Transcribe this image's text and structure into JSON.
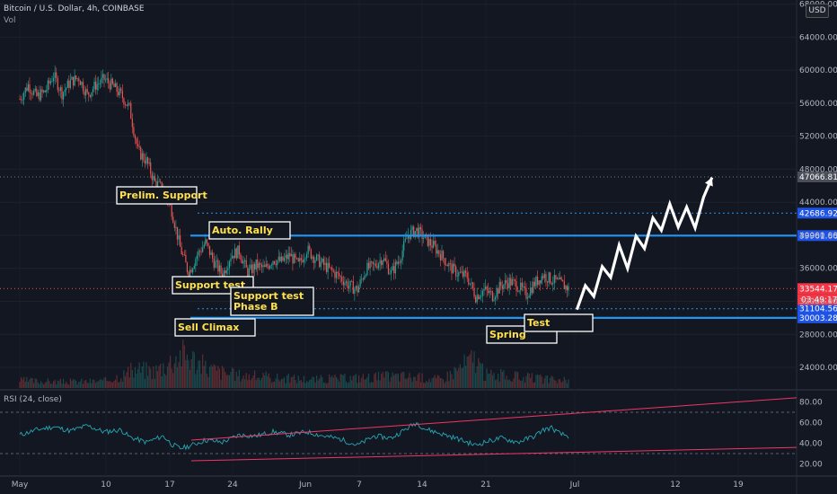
{
  "header": {
    "title": "Bitcoin / U.S. Dollar, 4h, COINBASE",
    "volume_label": "Vol",
    "rsi_label": "RSI (24, close)",
    "currency": "USD"
  },
  "chart_data": {
    "type": "candlestick",
    "symbol": "Bitcoin / U.S. Dollar",
    "interval": "4h",
    "exchange": "COINBASE",
    "currency": "USD",
    "price_axis": {
      "ticks": [
        24000,
        28000,
        32000,
        36000,
        40000,
        44000,
        48000,
        52000,
        56000,
        60000,
        64000,
        68000
      ],
      "tick_labels": [
        "24000.00",
        "28000.00",
        "32000.00",
        "36000.00",
        "40000.00",
        "44000.00",
        "48000.00",
        "52000.00",
        "56000.00",
        "60000.00",
        "64000.00",
        "68000.00"
      ],
      "range": [
        21500,
        68500
      ]
    },
    "x_axis": {
      "ticks": [
        "May",
        "10",
        "17",
        "24",
        "Jun",
        "7",
        "14",
        "21",
        "Jul",
        "12",
        "19"
      ],
      "day_range": [
        0,
        82
      ]
    },
    "price_path": [
      [
        0,
        56500
      ],
      [
        1,
        58200
      ],
      [
        2,
        56800
      ],
      [
        3,
        57400
      ],
      [
        4,
        59400
      ],
      [
        5,
        57200
      ],
      [
        6,
        58600
      ],
      [
        7,
        59100
      ],
      [
        8,
        57000
      ],
      [
        9,
        58200
      ],
      [
        10,
        58900
      ],
      [
        11,
        58100
      ],
      [
        12,
        57000
      ],
      [
        13,
        55400
      ],
      [
        14,
        50200
      ],
      [
        15,
        49000
      ],
      [
        16,
        46400
      ],
      [
        17,
        45600
      ],
      [
        18,
        43000
      ],
      [
        19,
        38500
      ],
      [
        20,
        35400
      ],
      [
        21,
        37600
      ],
      [
        22,
        39100
      ],
      [
        23,
        36800
      ],
      [
        24,
        35200
      ],
      [
        25,
        37600
      ],
      [
        26,
        38100
      ],
      [
        27,
        35400
      ],
      [
        28,
        36400
      ],
      [
        29,
        35900
      ],
      [
        30,
        37100
      ],
      [
        31,
        36800
      ],
      [
        32,
        37600
      ],
      [
        33,
        36400
      ],
      [
        34,
        38300
      ],
      [
        35,
        37200
      ],
      [
        36,
        36400
      ],
      [
        37,
        35600
      ],
      [
        38,
        34900
      ],
      [
        39,
        33900
      ],
      [
        40,
        33400
      ],
      [
        41,
        35900
      ],
      [
        42,
        36300
      ],
      [
        43,
        37300
      ],
      [
        44,
        35400
      ],
      [
        45,
        37200
      ],
      [
        46,
        40100
      ],
      [
        47,
        40600
      ],
      [
        48,
        39600
      ],
      [
        49,
        38700
      ],
      [
        50,
        37500
      ],
      [
        51,
        36100
      ],
      [
        52,
        35300
      ],
      [
        53,
        35000
      ],
      [
        54,
        32600
      ],
      [
        55,
        33400
      ],
      [
        56,
        32700
      ],
      [
        57,
        33900
      ],
      [
        58,
        34400
      ],
      [
        59,
        33900
      ],
      [
        60,
        32800
      ],
      [
        61,
        34200
      ],
      [
        62,
        35200
      ],
      [
        63,
        34600
      ],
      [
        64,
        34200
      ],
      [
        65,
        33544
      ]
    ],
    "volume_path": [
      [
        0,
        0.22
      ],
      [
        5,
        0.18
      ],
      [
        10,
        0.2
      ],
      [
        14,
        0.55
      ],
      [
        16,
        0.5
      ],
      [
        18,
        0.8
      ],
      [
        19,
        1.0
      ],
      [
        20,
        0.95
      ],
      [
        22,
        0.6
      ],
      [
        25,
        0.4
      ],
      [
        30,
        0.3
      ],
      [
        35,
        0.25
      ],
      [
        40,
        0.3
      ],
      [
        45,
        0.35
      ],
      [
        50,
        0.25
      ],
      [
        54,
        0.9
      ],
      [
        55,
        0.4
      ],
      [
        60,
        0.3
      ],
      [
        65,
        0.2
      ]
    ],
    "rsi_path": [
      [
        0,
        48
      ],
      [
        2,
        53
      ],
      [
        4,
        56
      ],
      [
        6,
        52
      ],
      [
        8,
        57
      ],
      [
        10,
        51
      ],
      [
        12,
        53
      ],
      [
        13,
        46
      ],
      [
        15,
        41
      ],
      [
        17,
        47
      ],
      [
        18,
        39
      ],
      [
        19,
        35
      ],
      [
        20,
        37
      ],
      [
        22,
        43
      ],
      [
        24,
        41
      ],
      [
        26,
        48
      ],
      [
        28,
        47
      ],
      [
        30,
        51
      ],
      [
        32,
        48
      ],
      [
        34,
        51
      ],
      [
        36,
        47
      ],
      [
        38,
        44
      ],
      [
        40,
        38
      ],
      [
        42,
        47
      ],
      [
        44,
        45
      ],
      [
        46,
        55
      ],
      [
        47,
        60
      ],
      [
        48,
        54
      ],
      [
        50,
        49
      ],
      [
        52,
        44
      ],
      [
        54,
        38
      ],
      [
        55,
        41
      ],
      [
        57,
        45
      ],
      [
        59,
        41
      ],
      [
        61,
        47
      ],
      [
        62,
        53
      ],
      [
        63,
        55
      ],
      [
        64,
        49
      ],
      [
        65,
        47
      ]
    ],
    "rsi_axis": {
      "ticks": [
        20,
        40,
        60,
        80
      ],
      "tick_labels": [
        "20.00",
        "40.00",
        "60.00",
        "80.00"
      ],
      "range": [
        10,
        90
      ],
      "bands": [
        30,
        70
      ]
    },
    "levels": [
      {
        "price": 39961.66,
        "label": "39961.66",
        "style": "solid-blue"
      },
      {
        "price": 30003.28,
        "label": "30003.28",
        "style": "solid-blue"
      },
      {
        "price": 42686.92,
        "label": "42686.92",
        "style": "dotted-blue"
      },
      {
        "price": 31104.56,
        "label": "31104.56",
        "style": "dotted-blue"
      },
      {
        "price": 47066.81,
        "label": "47066.81",
        "style": "dotted-gray"
      },
      {
        "price": 33544.17,
        "label": "33544.17",
        "style": "dotted-red"
      }
    ],
    "countdown": "03:49:17",
    "annotations": [
      "Prelim. Support",
      "Auto. Rally",
      "Support test",
      "Support test\nPhase B",
      "Sell Climax",
      "Spring",
      "Test"
    ],
    "projection": [
      [
        66,
        31000
      ],
      [
        67,
        33900
      ],
      [
        68,
        32600
      ],
      [
        69,
        36200
      ],
      [
        70,
        34900
      ],
      [
        71,
        38800
      ],
      [
        72,
        36000
      ],
      [
        73,
        39900
      ],
      [
        74,
        38400
      ],
      [
        75,
        42100
      ],
      [
        76,
        40600
      ],
      [
        77,
        43800
      ],
      [
        78,
        41000
      ],
      [
        79,
        43400
      ],
      [
        80,
        40900
      ],
      [
        81,
        44600
      ],
      [
        82,
        47000
      ]
    ]
  }
}
